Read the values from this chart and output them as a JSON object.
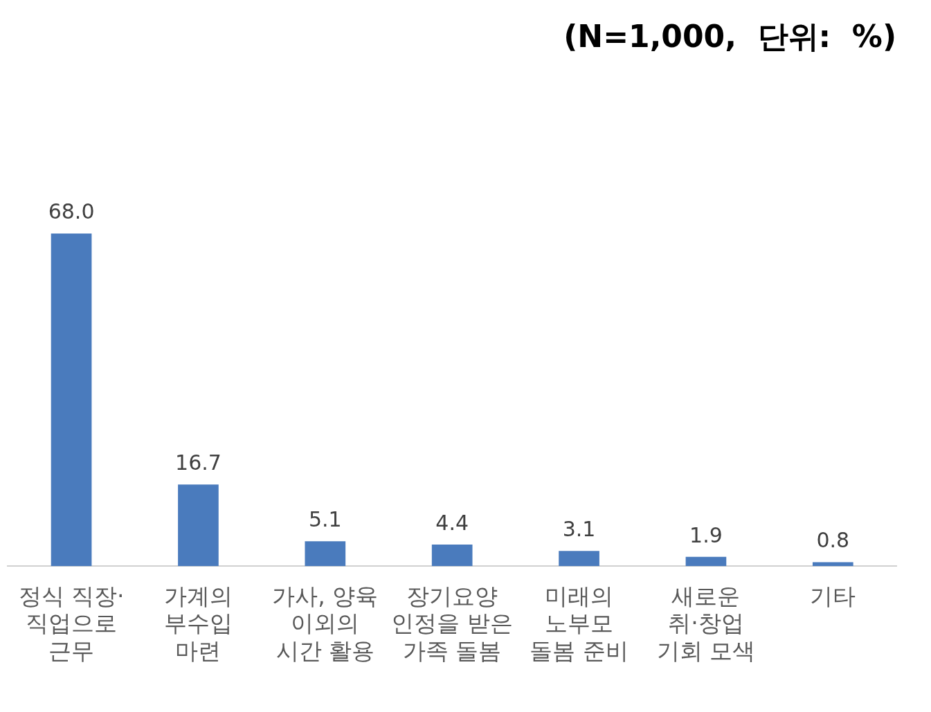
{
  "chart_data": {
    "type": "bar",
    "title": "(N=1,000,  단위:  %)",
    "categories": [
      "정식 직장·\n직업으로\n근무",
      "가계의\n부수입\n마련",
      "가사, 양육\n이외의\n시간 활용",
      "장기요양\n인정을 받은\n가족 돌봄",
      "미래의\n노부모\n돌봄 준비",
      "새로운\n취·창업\n기회 모색",
      "기타"
    ],
    "values": [
      68.0,
      16.7,
      5.1,
      4.4,
      3.1,
      1.9,
      0.8
    ],
    "value_labels": [
      "68.0",
      "16.7",
      "5.1",
      "4.4",
      "3.1",
      "1.9",
      "0.8"
    ],
    "color": "#4a7bbd",
    "grid": false,
    "legend": false
  }
}
